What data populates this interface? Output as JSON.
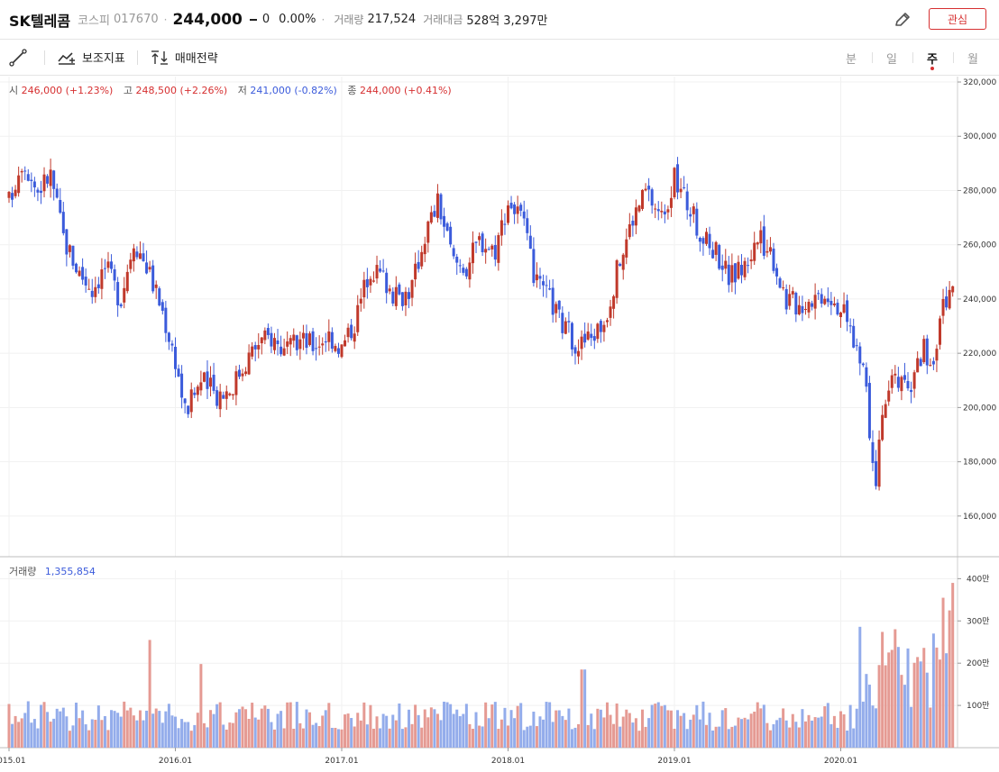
{
  "header": {
    "name": "SK텔레콤",
    "market": "코스피",
    "code": "017670",
    "price": "244,000",
    "change": "0",
    "change_pct": "0.00%",
    "volume_label": "거래량",
    "volume_value": "217,524",
    "amount_label": "거래대금",
    "amount_value": "528억 3,297만",
    "favorite_label": "관심",
    "edit_icon": "pencil-icon"
  },
  "toolbar": {
    "draw_icon": "line-draw-icon",
    "indicator_label": "보조지표",
    "strategy_label": "매매전략",
    "periods": [
      "분",
      "일",
      "주",
      "월"
    ],
    "active_period": "주"
  },
  "legend": {
    "open_label": "시",
    "open_value": "246,000 (+1.23%)",
    "high_label": "고",
    "high_value": "248,500 (+2.26%)",
    "low_label": "저",
    "low_value": "241,000 (-0.82%)",
    "close_label": "종",
    "close_value": "244,000 (+0.41%)"
  },
  "volume_legend": {
    "label": "거래량",
    "value": "1,355,854"
  },
  "chart_data": {
    "type": "candlestick",
    "up_color": "#c0392b",
    "down_color": "#3b5bdb",
    "price_axis": {
      "min": 145000,
      "max": 322000,
      "ticks": [
        160000,
        180000,
        200000,
        220000,
        240000,
        260000,
        280000,
        300000,
        320000
      ],
      "tick_labels": [
        "160,000",
        "180,000",
        "200,000",
        "220,000",
        "240,000",
        "260,000",
        "280,000",
        "300,000",
        "320,000"
      ]
    },
    "volume_axis": {
      "min": 0,
      "max": 4200000,
      "ticks": [
        1000000,
        2000000,
        3000000,
        4000000
      ],
      "tick_labels": [
        "100만",
        "200만",
        "300만",
        "400만"
      ]
    },
    "time_axis": {
      "start": 2015.0,
      "end": 2020.7,
      "ticks": [
        2015,
        2016,
        2017,
        2018,
        2019,
        2020
      ],
      "tick_labels": [
        "2015.01",
        "2016.01",
        "2017.01",
        "2018.01",
        "2019.01",
        "2020.01"
      ]
    },
    "close_path": [
      [
        2015.0,
        276000
      ],
      [
        2015.08,
        292000
      ],
      [
        2015.17,
        280000
      ],
      [
        2015.25,
        286000
      ],
      [
        2015.33,
        262000
      ],
      [
        2015.42,
        250000
      ],
      [
        2015.5,
        244000
      ],
      [
        2015.58,
        252000
      ],
      [
        2015.67,
        240000
      ],
      [
        2015.75,
        262000
      ],
      [
        2015.83,
        252000
      ],
      [
        2015.92,
        236000
      ],
      [
        2016.0,
        218000
      ],
      [
        2016.06,
        198000
      ],
      [
        2016.15,
        210000
      ],
      [
        2016.25,
        205000
      ],
      [
        2016.33,
        207000
      ],
      [
        2016.42,
        217000
      ],
      [
        2016.5,
        224000
      ],
      [
        2016.58,
        226000
      ],
      [
        2016.67,
        220000
      ],
      [
        2016.75,
        225000
      ],
      [
        2016.83,
        223000
      ],
      [
        2016.92,
        227000
      ],
      [
        2017.0,
        222000
      ],
      [
        2017.08,
        232000
      ],
      [
        2017.17,
        252000
      ],
      [
        2017.25,
        248000
      ],
      [
        2017.33,
        240000
      ],
      [
        2017.42,
        244000
      ],
      [
        2017.5,
        264000
      ],
      [
        2017.58,
        276000
      ],
      [
        2017.67,
        254000
      ],
      [
        2017.75,
        252000
      ],
      [
        2017.83,
        262000
      ],
      [
        2017.92,
        258000
      ],
      [
        2018.0,
        276000
      ],
      [
        2018.08,
        270000
      ],
      [
        2018.17,
        245000
      ],
      [
        2018.25,
        240000
      ],
      [
        2018.33,
        230000
      ],
      [
        2018.42,
        223000
      ],
      [
        2018.5,
        226000
      ],
      [
        2018.58,
        232000
      ],
      [
        2018.67,
        254000
      ],
      [
        2018.75,
        270000
      ],
      [
        2018.83,
        280000
      ],
      [
        2018.92,
        270000
      ],
      [
        2019.0,
        284000
      ],
      [
        2019.08,
        275000
      ],
      [
        2019.17,
        262000
      ],
      [
        2019.25,
        258000
      ],
      [
        2019.33,
        248000
      ],
      [
        2019.42,
        252000
      ],
      [
        2019.5,
        262000
      ],
      [
        2019.58,
        258000
      ],
      [
        2019.67,
        240000
      ],
      [
        2019.75,
        238000
      ],
      [
        2019.83,
        241000
      ],
      [
        2019.92,
        243000
      ],
      [
        2020.0,
        237000
      ],
      [
        2020.08,
        225000
      ],
      [
        2020.15,
        210000
      ],
      [
        2020.2,
        170000
      ],
      [
        2020.27,
        203000
      ],
      [
        2020.33,
        212000
      ],
      [
        2020.42,
        205000
      ],
      [
        2020.5,
        222000
      ],
      [
        2020.55,
        210000
      ],
      [
        2020.62,
        240000
      ],
      [
        2020.7,
        244000
      ]
    ]
  }
}
